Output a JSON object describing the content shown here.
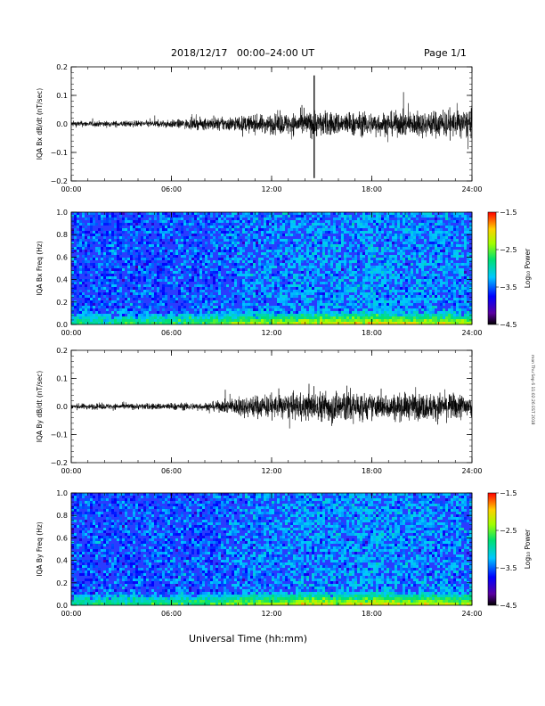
{
  "header": {
    "title": "2018/12/17   00:00–24:00 UT",
    "page": "Page 1/1"
  },
  "side_note": "mon Thu Sep 6 11:02:26 EST 2018",
  "chart_data": [
    {
      "type": "line",
      "ylabel": "IQA Bx dB/dt (nT/sec)",
      "ylim": [
        -0.2,
        0.2
      ],
      "yticks": [
        "0.2",
        "0.1",
        "0.0",
        "−0.1",
        "−0.2"
      ],
      "xticks": [
        "00:00",
        "06:00",
        "12:00",
        "18:00",
        "24:00"
      ],
      "xlim_hours": [
        0,
        24
      ],
      "envelope": {
        "hours": [
          0,
          2,
          4,
          6,
          8,
          9,
          10,
          11,
          12,
          13,
          14,
          14.6,
          15,
          16,
          17,
          18,
          19,
          20,
          21,
          22,
          23,
          24
        ],
        "amplitude": [
          0.015,
          0.015,
          0.016,
          0.02,
          0.03,
          0.035,
          0.04,
          0.045,
          0.05,
          0.055,
          0.06,
          0.07,
          0.065,
          0.06,
          0.06,
          0.06,
          0.06,
          0.065,
          0.065,
          0.07,
          0.07,
          0.075
        ]
      },
      "spike": {
        "hour": 14.55,
        "max": 0.17,
        "min": -0.19
      }
    },
    {
      "type": "heatmap",
      "ylabel": "IQA Bx Freq (Hz)",
      "ylim": [
        0,
        1.0
      ],
      "yticks": [
        "1.0",
        "0.8",
        "0.6",
        "0.4",
        "0.2",
        "0.0"
      ],
      "xticks": [
        "00:00",
        "06:00",
        "12:00",
        "18:00",
        "24:00"
      ],
      "colorbar": {
        "label": "Log₁₀ Power",
        "range": [
          -4.5,
          -1.5
        ],
        "ticks": [
          "−1.5",
          "−2.5",
          "−3.5",
          "−4.5"
        ]
      }
    },
    {
      "type": "line",
      "ylabel": "IQA By dB/dt (nT/sec)",
      "ylim": [
        -0.2,
        0.2
      ],
      "yticks": [
        "0.2",
        "0.1",
        "0.0",
        "−0.1",
        "−0.2"
      ],
      "xticks": [
        "00:00",
        "06:00",
        "12:00",
        "18:00",
        "24:00"
      ],
      "xlim_hours": [
        0,
        24
      ],
      "envelope": {
        "hours": [
          0,
          2,
          4,
          6,
          8,
          9,
          10,
          11,
          12,
          13,
          14,
          15,
          16,
          16.5,
          17,
          18,
          19,
          20,
          21,
          22,
          23,
          24
        ],
        "amplitude": [
          0.015,
          0.015,
          0.016,
          0.018,
          0.02,
          0.03,
          0.05,
          0.06,
          0.06,
          0.065,
          0.07,
          0.08,
          0.09,
          0.1,
          0.08,
          0.065,
          0.065,
          0.07,
          0.07,
          0.07,
          0.07,
          0.07
        ]
      }
    },
    {
      "type": "heatmap",
      "ylabel": "IQA By Freq (Hz)",
      "ylim": [
        0,
        1.0
      ],
      "yticks": [
        "1.0",
        "0.8",
        "0.6",
        "0.4",
        "0.2",
        "0.0"
      ],
      "xticks": [
        "00:00",
        "06:00",
        "12:00",
        "18:00",
        "24:00"
      ],
      "colorbar": {
        "label": "Log₁₀ Power",
        "range": [
          -4.5,
          -1.5
        ],
        "ticks": [
          "−1.5",
          "−2.5",
          "−3.5",
          "−4.5"
        ]
      }
    }
  ],
  "xlabel": "Universal Time (hh:mm)"
}
